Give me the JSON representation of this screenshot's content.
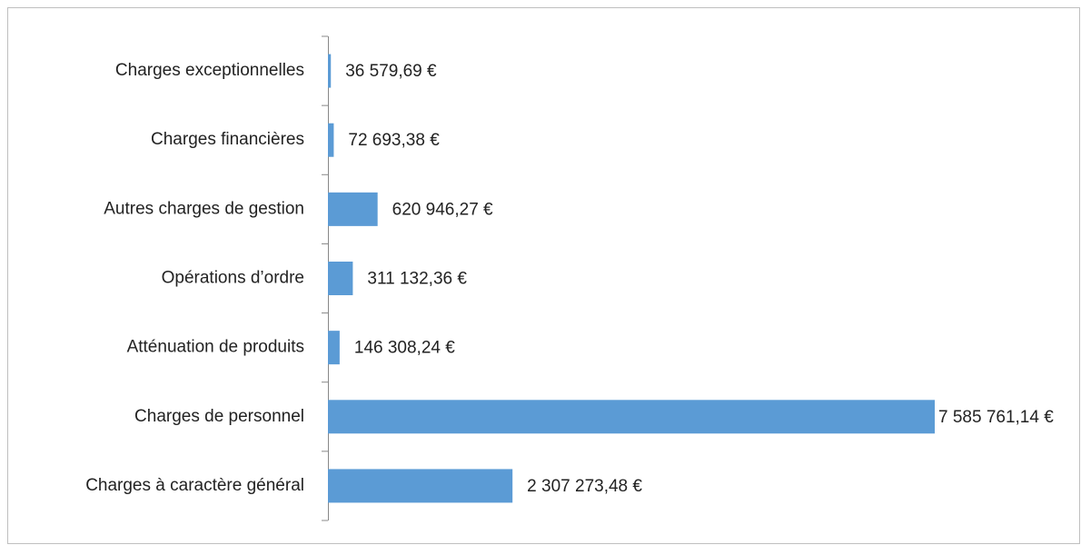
{
  "chart_data": {
    "type": "bar",
    "orientation": "horizontal",
    "color": "#5b9bd5",
    "categories": [
      "Charges exceptionnelles",
      "Charges financières",
      "Autres charges de gestion",
      "Opérations d’ordre",
      "Atténuation de produits",
      "Charges de personnel",
      "Charges à caractère général"
    ],
    "values": [
      36579.69,
      72693.38,
      620946.27,
      311132.36,
      146308.24,
      7585761.14,
      2307273.48
    ],
    "value_labels": [
      "36 579,69 €",
      "72 693,38 €",
      "620 946,27 €",
      "311 132,36 €",
      "146 308,24 €",
      "7 585 761,14 €",
      "2 307 273,48 €"
    ]
  }
}
